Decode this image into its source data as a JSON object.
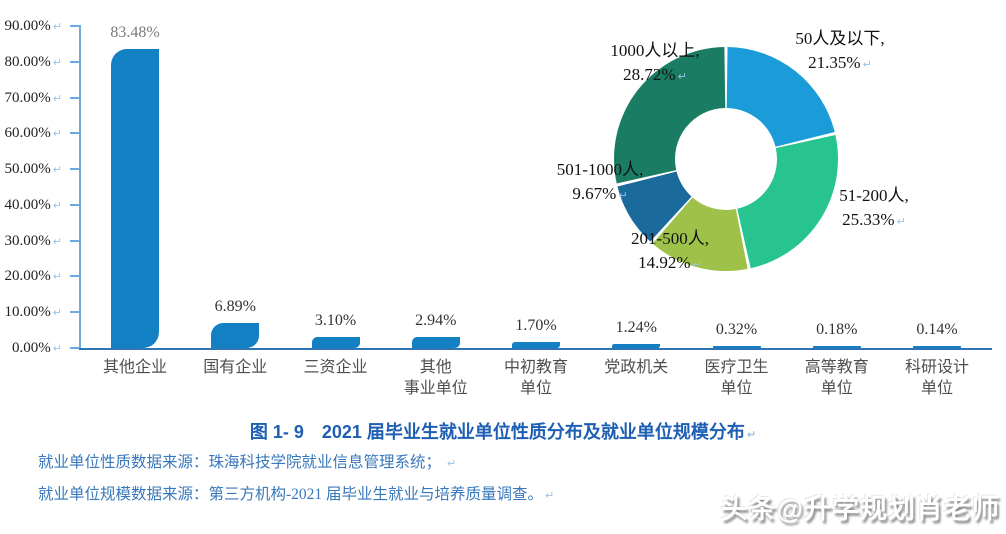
{
  "page": {
    "background": "#ffffff"
  },
  "marks": {
    "return": "↵"
  },
  "colors": {
    "bar": "#1380C4",
    "axis": "#6FA8DC",
    "baseline": "#2E75B6",
    "caption": "#1E5FB4",
    "source": "#3878BC",
    "tick_label": "#222222",
    "category_label": "#4F4F4F",
    "donut_label": "#111111",
    "ret": "#9DC3E6",
    "watermark_shadow": "#8F8F8F"
  },
  "chart_data": [
    {
      "type": "bar",
      "keys": [
        "other-enterprises",
        "state-owned-enterprises",
        "foreign-joint-ventures",
        "other-public-institutions",
        "primary-secondary-education-units",
        "party-government-organs",
        "medical-health-units",
        "higher-education-units",
        "research-design-units"
      ],
      "categories": [
        "其他企业",
        "国有企业",
        "三资企业",
        "其他\n事业单位",
        "中初教育\n单位",
        "党政机关",
        "医疗卫生\n单位",
        "高等教育\n单位",
        "科研设计\n单位"
      ],
      "values": [
        83.48,
        6.89,
        3.1,
        2.94,
        1.7,
        1.24,
        0.32,
        0.18,
        0.14
      ],
      "value_labels": [
        "83.48%",
        "6.89%",
        "3.10%",
        "2.94%",
        "1.70%",
        "1.24%",
        "0.32%",
        "0.18%",
        "0.14%"
      ],
      "value_label_colors": [
        "#7A7A7A",
        "#333333",
        "#333333",
        "#333333",
        "#333333",
        "#333333",
        "#333333",
        "#333333",
        "#333333"
      ],
      "ylim": [
        0,
        90
      ],
      "ytick_labels": [
        "90.00%",
        "80.00%",
        "70.00%",
        "60.00%",
        "50.00%",
        "40.00%",
        "30.00%",
        "20.00%",
        "10.00%",
        "0.00%"
      ],
      "bar_color": "#1380C4",
      "grid": false,
      "legend": "none"
    },
    {
      "type": "pie",
      "donut": true,
      "start_angle_deg": 0,
      "direction": "clockwise",
      "slices": [
        {
          "key": "size-50-and-below",
          "line1": "50人及以下,",
          "line2": "21.35%",
          "pct": 21.35,
          "color": "#1B9CD8"
        },
        {
          "key": "size-51-200",
          "line1": "51-200人,",
          "line2": "25.33%",
          "pct": 25.33,
          "color": "#27C490"
        },
        {
          "key": "size-201-500",
          "line1": "201-500人,",
          "line2": "14.92%",
          "pct": 14.92,
          "color": "#9EC14A"
        },
        {
          "key": "size-501-1000",
          "line1": "501-1000人,",
          "line2": "9.67%",
          "pct": 9.67,
          "color": "#1A6A9B"
        },
        {
          "key": "size-1000-plus",
          "line1": "1000人以上,",
          "line2": "28.72%",
          "pct": 28.72,
          "color": "#1A7D63"
        }
      ]
    }
  ],
  "caption": {
    "text": "图 1- 9　2021 届毕业生就业单位性质分布及就业单位规模分布"
  },
  "sources": [
    {
      "text": "就业单位性质数据来源：珠海科技学院就业信息管理系统；"
    },
    {
      "text": "就业单位规模数据来源：第三方机构-2021 届毕业生就业与培养质量调查。"
    }
  ],
  "watermark": {
    "text": "头条@升学规划肖老师"
  }
}
